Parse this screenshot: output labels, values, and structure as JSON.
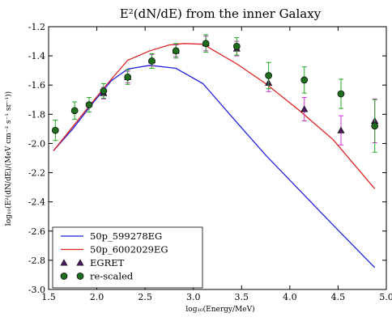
{
  "chart_data": {
    "type": "line",
    "title": "E²(dN/dE) from the inner Galaxy",
    "xlabel": "log₁₀(Energy/MeV)",
    "ylabel": "log₁₀(E²(dN/dE)/(MeV cm⁻² s⁻¹ sr⁻¹))",
    "xlim": [
      1.5,
      5.0
    ],
    "ylim": [
      -3.0,
      -1.2
    ],
    "x_ticks": [
      1.5,
      2.0,
      2.5,
      3.0,
      3.5,
      4.0,
      4.5,
      5.0
    ],
    "x_tick_labels": [
      "1.5",
      "2.0",
      "2.5",
      "3.0",
      "3.5",
      "4.0",
      "4.5",
      "5.0"
    ],
    "y_ticks": [
      -3.0,
      -2.8,
      -2.6,
      -2.4,
      -2.2,
      -2.0,
      -1.8,
      -1.6,
      -1.4,
      -1.2
    ],
    "y_tick_labels": [
      "-3.0",
      "-2.8",
      "-2.6",
      "-2.4",
      "-2.2",
      "-2.0",
      "-1.8",
      "-1.6",
      "-1.4",
      "-1.2"
    ],
    "grid": false,
    "legend_position": "lower-left",
    "series": [
      {
        "name": "50p_599278EG",
        "kind": "line",
        "color": "#2222dd",
        "x": [
          1.55,
          1.75,
          1.95,
          2.15,
          2.32,
          2.55,
          2.82,
          3.1,
          3.45,
          3.75,
          4.1,
          4.45,
          4.88
        ],
        "y": [
          -2.05,
          -1.9,
          -1.73,
          -1.57,
          -1.49,
          -1.465,
          -1.485,
          -1.59,
          -1.855,
          -2.08,
          -2.32,
          -2.56,
          -2.85
        ]
      },
      {
        "name": "50p_6002029EG",
        "kind": "line",
        "color": "#dd2222",
        "x": [
          1.55,
          1.75,
          1.95,
          2.15,
          2.32,
          2.55,
          2.75,
          2.9,
          3.1,
          3.45,
          3.75,
          4.1,
          4.45,
          4.88
        ],
        "y": [
          -2.05,
          -1.885,
          -1.72,
          -1.56,
          -1.43,
          -1.365,
          -1.325,
          -1.315,
          -1.32,
          -1.455,
          -1.59,
          -1.775,
          -1.975,
          -2.31
        ]
      },
      {
        "name": "EGRET",
        "kind": "triangle",
        "color": "#4b1a5e",
        "error_color": "#cc33cc",
        "x": [
          2.07,
          2.32,
          2.57,
          2.82,
          3.13,
          3.45,
          3.78,
          4.15,
          4.53,
          4.88
        ],
        "y": [
          -1.655,
          -1.545,
          -1.43,
          -1.365,
          -1.315,
          -1.35,
          -1.585,
          -1.765,
          -1.91,
          -1.845
        ],
        "err_low": [
          0.04,
          0.04,
          0.04,
          0.04,
          0.05,
          0.05,
          0.06,
          0.08,
          0.1,
          0.15
        ],
        "err_high": [
          0.04,
          0.04,
          0.04,
          0.04,
          0.05,
          0.05,
          0.06,
          0.08,
          0.1,
          0.15
        ]
      },
      {
        "name": "re-scaled",
        "kind": "circle",
        "color": "#1e6e1e",
        "error_color": "#22aa22",
        "x": [
          1.57,
          1.77,
          1.92,
          2.07,
          2.32,
          2.57,
          2.82,
          3.13,
          3.45,
          3.78,
          4.15,
          4.53,
          4.88
        ],
        "y": [
          -1.91,
          -1.775,
          -1.735,
          -1.64,
          -1.545,
          -1.435,
          -1.365,
          -1.315,
          -1.335,
          -1.535,
          -1.565,
          -1.66,
          -1.88
        ],
        "err_low": [
          0.07,
          0.06,
          0.05,
          0.05,
          0.05,
          0.05,
          0.05,
          0.06,
          0.06,
          0.09,
          0.09,
          0.1,
          0.18
        ],
        "err_high": [
          0.07,
          0.06,
          0.05,
          0.05,
          0.05,
          0.05,
          0.05,
          0.06,
          0.06,
          0.09,
          0.09,
          0.1,
          0.18
        ]
      }
    ]
  }
}
